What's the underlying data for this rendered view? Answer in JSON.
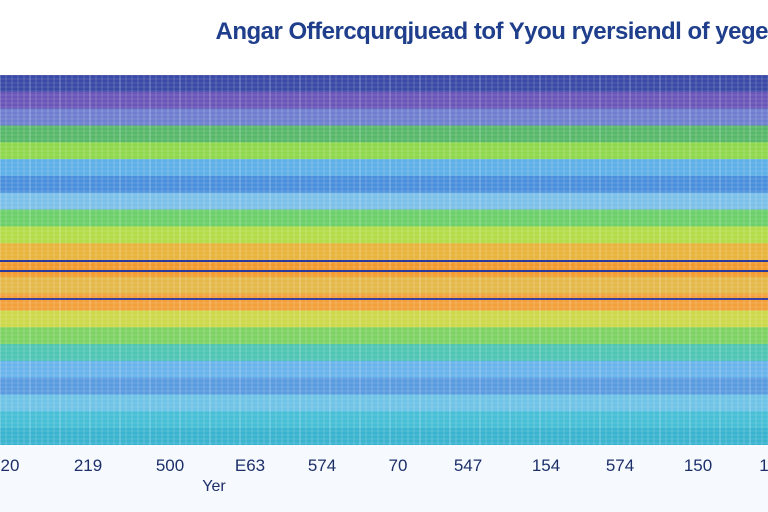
{
  "chart_data": {
    "type": "heatmap",
    "title": "Angar Offercqurqjuead tof Yyou ryersiendl of yege",
    "xlabel": "Yer",
    "ylabel": "",
    "x_ticks": [
      "20",
      "219",
      "500",
      "E63",
      "574",
      "70",
      "547",
      "154",
      "574",
      "150",
      "1"
    ],
    "bands": [
      {
        "color": "#3a4aa6"
      },
      {
        "color": "#6a55b8"
      },
      {
        "color": "#6f7fd0"
      },
      {
        "color": "#58b86a"
      },
      {
        "color": "#8fd84e"
      },
      {
        "color": "#5fb0e8"
      },
      {
        "color": "#4a8fdc"
      },
      {
        "color": "#7cc0ea"
      },
      {
        "color": "#6ccf6a"
      },
      {
        "color": "#b3dc48"
      },
      {
        "color": "#e8b43c"
      },
      {
        "color": "#f29a2e"
      },
      {
        "color": "#e5b84a"
      },
      {
        "color": "#f3a03a"
      },
      {
        "color": "#cdd84a"
      },
      {
        "color": "#7ed263"
      },
      {
        "color": "#4fc5b4"
      },
      {
        "color": "#6ab4ec"
      },
      {
        "color": "#5a9be0"
      },
      {
        "color": "#6ec3e6"
      },
      {
        "color": "#47bfd6"
      },
      {
        "color": "#3ab3cf"
      }
    ],
    "accent_lines": [
      {
        "color": "#2a3a9c"
      },
      {
        "color": "#2a3a9c"
      },
      {
        "color": "#3a3fa0"
      }
    ],
    "grid": true
  },
  "colors": {
    "axis_band": "#f6f9fd",
    "title": "#1f3f8c",
    "tick_text": "#1c2f6b"
  }
}
